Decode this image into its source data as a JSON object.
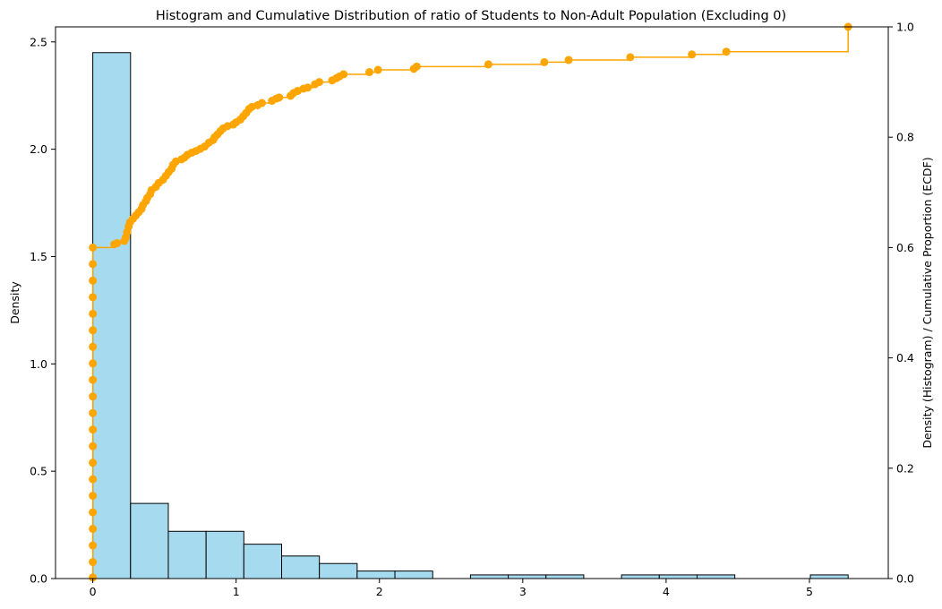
{
  "chart_data": {
    "type": "bar",
    "title": "Histogram and Cumulative Distribution of ratio of Students to Non-Adult Population (Excluding 0)",
    "ylabel": "Density",
    "y2label": "Density (Histogram) / Cumulative Proportion (ECDF)",
    "xlim": [
      -0.26,
      5.55
    ],
    "ylim": [
      0,
      2.57
    ],
    "y2lim": [
      0,
      1.0
    ],
    "x_ticks": [
      0,
      1,
      2,
      3,
      4,
      5
    ],
    "y_ticks": [
      0.0,
      0.5,
      1.0,
      1.5,
      2.0,
      2.5
    ],
    "y2_ticks": [
      0.0,
      0.2,
      0.4,
      0.6,
      0.8,
      1.0
    ],
    "histogram": {
      "bin_width": 0.2635,
      "bin_edges": [
        0.0,
        0.2635,
        0.527,
        0.7905,
        1.054,
        1.3175,
        1.581,
        1.8445,
        2.108,
        2.3715,
        2.635,
        2.8985,
        3.162,
        3.4255,
        3.689,
        3.9525,
        4.216,
        4.4795,
        4.743,
        5.0065,
        5.27
      ],
      "values": [
        2.45,
        0.35,
        0.22,
        0.22,
        0.16,
        0.105,
        0.07,
        0.035,
        0.035,
        0,
        0.017,
        0.017,
        0.017,
        0,
        0.017,
        0.017,
        0.017,
        0,
        0,
        0.017
      ],
      "fill": "#a6dbef",
      "edge": "#000000"
    },
    "ecdf": {
      "color": "#ffa500",
      "points": [
        [
          0.0,
          0.002
        ],
        [
          0.0,
          0.03
        ],
        [
          0.0,
          0.06
        ],
        [
          0.0,
          0.09
        ],
        [
          0.0,
          0.12
        ],
        [
          0.0,
          0.15
        ],
        [
          0.0,
          0.18
        ],
        [
          0.0,
          0.21
        ],
        [
          0.0,
          0.24
        ],
        [
          0.0,
          0.27
        ],
        [
          0.0,
          0.3
        ],
        [
          0.0,
          0.33
        ],
        [
          0.0,
          0.36
        ],
        [
          0.0,
          0.39
        ],
        [
          0.0,
          0.42
        ],
        [
          0.0,
          0.45
        ],
        [
          0.0,
          0.48
        ],
        [
          0.0,
          0.51
        ],
        [
          0.0,
          0.54
        ],
        [
          0.0,
          0.57
        ],
        [
          0.0,
          0.6
        ],
        [
          0.15,
          0.606
        ],
        [
          0.17,
          0.608
        ],
        [
          0.22,
          0.612
        ],
        [
          0.23,
          0.618
        ],
        [
          0.24,
          0.628
        ],
        [
          0.25,
          0.638
        ],
        [
          0.26,
          0.646
        ],
        [
          0.28,
          0.652
        ],
        [
          0.3,
          0.658
        ],
        [
          0.32,
          0.664
        ],
        [
          0.34,
          0.67
        ],
        [
          0.35,
          0.677
        ],
        [
          0.37,
          0.684
        ],
        [
          0.38,
          0.69
        ],
        [
          0.4,
          0.697
        ],
        [
          0.41,
          0.704
        ],
        [
          0.44,
          0.71
        ],
        [
          0.46,
          0.717
        ],
        [
          0.49,
          0.723
        ],
        [
          0.51,
          0.73
        ],
        [
          0.53,
          0.737
        ],
        [
          0.55,
          0.743
        ],
        [
          0.56,
          0.75
        ],
        [
          0.58,
          0.756
        ],
        [
          0.62,
          0.76
        ],
        [
          0.64,
          0.763
        ],
        [
          0.66,
          0.768
        ],
        [
          0.69,
          0.772
        ],
        [
          0.72,
          0.775
        ],
        [
          0.75,
          0.779
        ],
        [
          0.78,
          0.783
        ],
        [
          0.81,
          0.79
        ],
        [
          0.84,
          0.795
        ],
        [
          0.85,
          0.8
        ],
        [
          0.87,
          0.805
        ],
        [
          0.89,
          0.811
        ],
        [
          0.91,
          0.816
        ],
        [
          0.94,
          0.82
        ],
        [
          0.98,
          0.823
        ],
        [
          1.0,
          0.827
        ],
        [
          1.03,
          0.832
        ],
        [
          1.05,
          0.838
        ],
        [
          1.07,
          0.844
        ],
        [
          1.09,
          0.851
        ],
        [
          1.11,
          0.855
        ],
        [
          1.15,
          0.858
        ],
        [
          1.18,
          0.862
        ],
        [
          1.25,
          0.866
        ],
        [
          1.28,
          0.87
        ],
        [
          1.3,
          0.872
        ],
        [
          1.38,
          0.875
        ],
        [
          1.4,
          0.88
        ],
        [
          1.43,
          0.884
        ],
        [
          1.47,
          0.888
        ],
        [
          1.5,
          0.89
        ],
        [
          1.55,
          0.896
        ],
        [
          1.58,
          0.9
        ],
        [
          1.67,
          0.903
        ],
        [
          1.7,
          0.907
        ],
        [
          1.72,
          0.91
        ],
        [
          1.75,
          0.914
        ],
        [
          1.93,
          0.918
        ],
        [
          1.99,
          0.922
        ],
        [
          2.24,
          0.924
        ],
        [
          2.26,
          0.928
        ],
        [
          2.76,
          0.932
        ],
        [
          3.15,
          0.936
        ],
        [
          3.32,
          0.94
        ],
        [
          3.75,
          0.945
        ],
        [
          4.18,
          0.95
        ],
        [
          4.42,
          0.955
        ],
        [
          5.27,
          1.0
        ]
      ]
    }
  }
}
